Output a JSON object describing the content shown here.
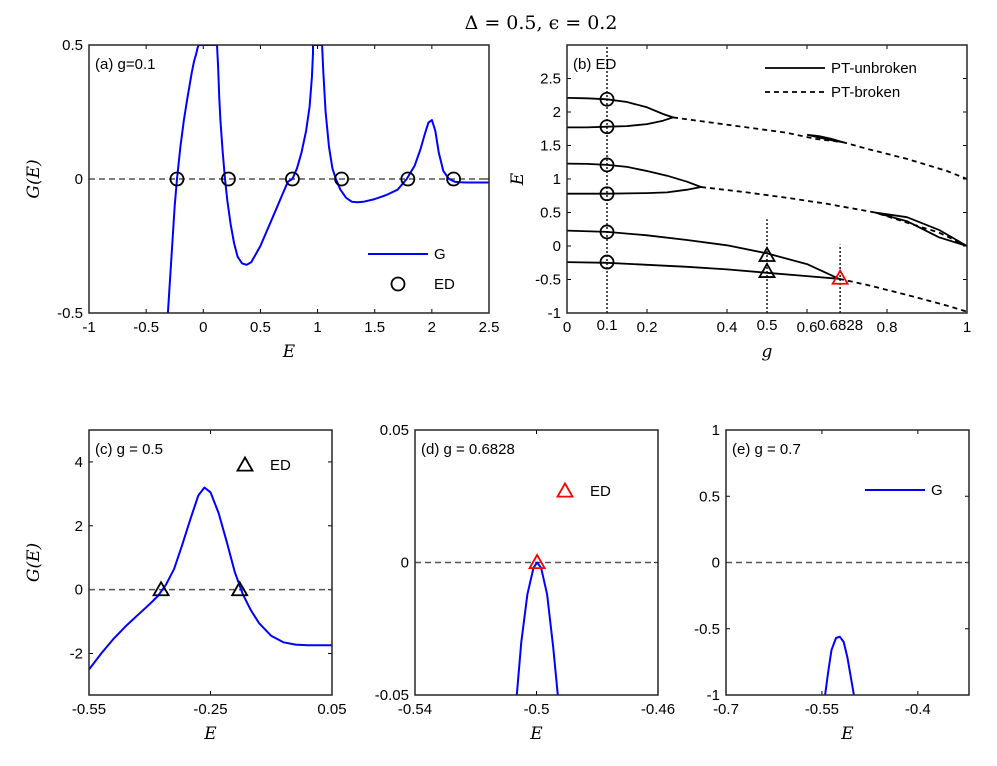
{
  "figure_title": "Δ = 0.5, ϵ = 0.2",
  "chart_data": [
    {
      "id": "a",
      "type": "line",
      "panel_label": "(a) g=0.1",
      "xlabel": "E",
      "ylabel": "G(E)",
      "xlim": [
        -1,
        2.5
      ],
      "ylim": [
        -0.5,
        0.5
      ],
      "xticks": [
        -1,
        -0.5,
        0,
        0.5,
        1,
        1.5,
        2,
        2.5
      ],
      "xtick_labels": [
        "-1",
        "-0.5",
        "0",
        "0.5",
        "1",
        "1.5",
        "2",
        "2.5"
      ],
      "yticks": [
        -0.5,
        0,
        0.5
      ],
      "ytick_labels": [
        "-0.5",
        "0",
        "0.5"
      ],
      "zero_line": true,
      "series": [
        {
          "name": "G",
          "kind": "line",
          "color": "#0000ff",
          "x": [
            -0.31,
            -0.28,
            -0.25,
            -0.23,
            -0.2,
            -0.17,
            -0.14,
            -0.12,
            -0.1,
            -0.08,
            -0.06,
            -0.05,
            -0.04,
            -0.03,
            -0.02,
            -0.02,
            0.12,
            0.12,
            0.13,
            0.14,
            0.15,
            0.17,
            0.19,
            0.21,
            0.24,
            0.27,
            0.3,
            0.34,
            0.38,
            0.42,
            0.46,
            0.5,
            0.55,
            0.6,
            0.65,
            0.7,
            0.74,
            0.78,
            0.82,
            0.86,
            0.9,
            0.93,
            0.95,
            0.96,
            0.96,
            1.04,
            1.05,
            1.07,
            1.1,
            1.13,
            1.16,
            1.2,
            1.25,
            1.3,
            1.35,
            1.4,
            1.5,
            1.6,
            1.7,
            1.78,
            1.85,
            1.9,
            1.94,
            1.97,
            2.0,
            2.03,
            2.06,
            2.1,
            2.15,
            2.2,
            2.25,
            2.3,
            2.35,
            2.4,
            2.5
          ],
          "y": [
            -0.5,
            -0.3,
            -0.1,
            0.0,
            0.12,
            0.22,
            0.3,
            0.35,
            0.4,
            0.44,
            0.47,
            0.49,
            0.5,
            0.5,
            0.5,
            0.5,
            0.5,
            0.5,
            0.42,
            0.3,
            0.22,
            0.1,
            0.0,
            -0.08,
            -0.17,
            -0.24,
            -0.29,
            -0.315,
            -0.32,
            -0.31,
            -0.28,
            -0.25,
            -0.2,
            -0.15,
            -0.1,
            -0.05,
            -0.01,
            0.0,
            0.04,
            0.1,
            0.18,
            0.27,
            0.38,
            0.47,
            0.5,
            0.5,
            0.4,
            0.25,
            0.12,
            0.04,
            0.0,
            -0.04,
            -0.07,
            -0.085,
            -0.087,
            -0.085,
            -0.075,
            -0.06,
            -0.04,
            0.0,
            0.05,
            0.11,
            0.17,
            0.21,
            0.22,
            0.18,
            0.1,
            0.03,
            0.0,
            -0.01,
            -0.012,
            -0.013,
            -0.013,
            -0.013,
            -0.013
          ]
        },
        {
          "name": "ED",
          "kind": "marker",
          "marker": "circle",
          "color": "#000000",
          "x": [
            -0.23,
            0.22,
            0.78,
            1.21,
            1.79,
            2.19
          ],
          "y": [
            0,
            0,
            0,
            0,
            0,
            0
          ]
        }
      ],
      "legend": {
        "position": "bottom-right",
        "entries": [
          "G",
          "ED"
        ]
      }
    },
    {
      "id": "b",
      "type": "line",
      "panel_label": "(b) ED",
      "xlabel": "g",
      "ylabel": "E",
      "xlim": [
        0,
        1
      ],
      "ylim": [
        -1,
        3
      ],
      "xticks": [
        0,
        0.2,
        0.4,
        0.6,
        0.8,
        1
      ],
      "xtick_labels": [
        "0",
        "0.2",
        "0.4",
        "0.6",
        "0.8",
        "1"
      ],
      "yticks": [
        -1,
        -0.5,
        0,
        0.5,
        1,
        1.5,
        2,
        2.5
      ],
      "ytick_labels": [
        "-1",
        "-0.5",
        "0",
        "0.5",
        "1",
        "1.5",
        "2",
        "2.5"
      ],
      "annotations": [
        {
          "text": "0.1",
          "x": 0.1,
          "y": -1.12
        },
        {
          "text": "0.5",
          "x": 0.5,
          "y": -1.12
        },
        {
          "text": "0.6828",
          "x": 0.6828,
          "y": -1.12
        }
      ],
      "vlines": [
        {
          "x": 0.1,
          "y_from": -1,
          "y_to": 3
        },
        {
          "x": 0.5,
          "y_from": -1,
          "y_to": 0.4
        },
        {
          "x": 0.6828,
          "y_from": -1,
          "y_to": 0.02
        }
      ],
      "series": [
        {
          "name": "PT-unbroken",
          "kind": "line",
          "dash": "solid",
          "x": [
            0,
            0.05,
            0.1,
            0.15,
            0.2,
            0.24,
            0.265,
            0.24,
            0.2,
            0.15,
            0.1,
            0.05,
            0
          ],
          "y": [
            2.21,
            2.205,
            2.19,
            2.15,
            2.07,
            1.97,
            1.92,
            1.87,
            1.82,
            1.79,
            1.78,
            1.77,
            1.77
          ]
        },
        {
          "name": "PT-unbroken",
          "kind": "line",
          "dash": "solid",
          "x": [
            0,
            0.05,
            0.1,
            0.15,
            0.2,
            0.25,
            0.3,
            0.335,
            0.3,
            0.25,
            0.2,
            0.15,
            0.1,
            0.05,
            0
          ],
          "y": [
            1.23,
            1.225,
            1.21,
            1.18,
            1.12,
            1.05,
            0.96,
            0.88,
            0.84,
            0.8,
            0.79,
            0.785,
            0.78,
            0.78,
            0.78
          ]
        },
        {
          "name": "PT-unbroken",
          "kind": "line",
          "dash": "solid",
          "x": [
            0,
            0.1,
            0.2,
            0.3,
            0.4,
            0.5,
            0.6,
            0.68,
            0.6,
            0.5,
            0.4,
            0.3,
            0.2,
            0.1,
            0
          ],
          "y": [
            0.23,
            0.21,
            0.16,
            0.09,
            0.01,
            -0.11,
            -0.27,
            -0.49,
            -0.45,
            -0.4,
            -0.35,
            -0.31,
            -0.28,
            -0.25,
            -0.24
          ]
        },
        {
          "name": "PT-unbroken",
          "kind": "line",
          "dash": "solid",
          "x": [
            0.6,
            0.63,
            0.66,
            0.69,
            0.66,
            0.63,
            0.6
          ],
          "y": [
            1.66,
            1.64,
            1.6,
            1.55,
            1.58,
            1.62,
            1.66
          ]
        },
        {
          "name": "PT-unbroken",
          "kind": "line",
          "dash": "solid",
          "x": [
            0.77,
            0.85,
            0.93,
            1.0,
            0.93,
            0.85,
            0.77
          ],
          "y": [
            0.5,
            0.43,
            0.24,
            0.0,
            0.13,
            0.37,
            0.5
          ]
        },
        {
          "name": "PT-broken",
          "kind": "line",
          "dash": "dashed",
          "x": [
            0.265,
            0.35,
            0.45,
            0.55,
            0.62,
            0.69,
            0.75,
            0.85,
            0.95,
            1.0
          ],
          "y": [
            1.92,
            1.85,
            1.77,
            1.69,
            1.6,
            1.55,
            1.45,
            1.3,
            1.12,
            1.0
          ]
        },
        {
          "name": "PT-broken",
          "kind": "line",
          "dash": "dashed",
          "x": [
            0.335,
            0.45,
            0.55,
            0.65,
            0.77,
            0.85,
            0.93,
            1.0
          ],
          "y": [
            0.88,
            0.8,
            0.72,
            0.63,
            0.5,
            0.35,
            0.2,
            0.0
          ]
        },
        {
          "name": "PT-broken",
          "kind": "line",
          "dash": "dashed",
          "x": [
            0.68,
            0.75,
            0.85,
            0.95,
            1.0
          ],
          "y": [
            -0.49,
            -0.58,
            -0.73,
            -0.89,
            -0.98
          ]
        },
        {
          "name": "ED-circles",
          "kind": "marker",
          "marker": "circle",
          "color": "#000000",
          "x": [
            0.1,
            0.1,
            0.1,
            0.1,
            0.1,
            0.1
          ],
          "y": [
            2.19,
            1.78,
            1.21,
            0.78,
            0.21,
            -0.24
          ]
        },
        {
          "name": "ED-triangles",
          "kind": "marker",
          "marker": "triangle",
          "color": "#000000",
          "x": [
            0.5,
            0.5
          ],
          "y": [
            -0.14,
            -0.38
          ]
        },
        {
          "name": "EP",
          "kind": "marker",
          "marker": "triangle",
          "color": "#ff0000",
          "x": [
            0.6828
          ],
          "y": [
            -0.48
          ]
        }
      ],
      "legend": {
        "position": "top-right",
        "entries": [
          "PT-unbroken",
          "PT-broken"
        ]
      }
    },
    {
      "id": "c",
      "type": "line",
      "panel_label": "(c) g = 0.5",
      "xlabel": "E",
      "ylabel": "G(E)",
      "xlim": [
        -0.55,
        0.05
      ],
      "ylim": [
        -3.3,
        5
      ],
      "xticks": [
        -0.55,
        -0.25,
        0.05
      ],
      "xtick_labels": [
        "-0.55",
        "-0.25",
        "0.05"
      ],
      "yticks": [
        -2,
        0,
        2,
        4
      ],
      "ytick_labels": [
        "-2",
        "0",
        "2",
        "4"
      ],
      "zero_line": true,
      "series": [
        {
          "name": "G",
          "kind": "line",
          "color": "#0000ff",
          "x": [
            -0.55,
            -0.52,
            -0.49,
            -0.46,
            -0.43,
            -0.4,
            -0.38,
            -0.36,
            -0.34,
            -0.32,
            -0.3,
            -0.28,
            -0.265,
            -0.25,
            -0.23,
            -0.21,
            -0.19,
            -0.17,
            -0.15,
            -0.13,
            -0.1,
            -0.07,
            -0.04,
            -0.01,
            0.02,
            0.05
          ],
          "y": [
            -2.5,
            -2.0,
            -1.55,
            -1.15,
            -0.8,
            -0.45,
            -0.2,
            0.15,
            0.65,
            1.4,
            2.2,
            2.95,
            3.2,
            3.05,
            2.4,
            1.5,
            0.55,
            -0.15,
            -0.65,
            -1.05,
            -1.45,
            -1.65,
            -1.72,
            -1.74,
            -1.74,
            -1.74
          ]
        },
        {
          "name": "ED",
          "kind": "marker",
          "marker": "triangle",
          "color": "#000000",
          "x": [
            -0.372,
            -0.178
          ],
          "y": [
            0,
            0
          ]
        }
      ],
      "legend": {
        "position": "top-right",
        "entries": [
          "ED"
        ]
      }
    },
    {
      "id": "d",
      "type": "line",
      "panel_label": "(d) g = 0.6828",
      "xlabel": "E",
      "ylabel": "",
      "xlim": [
        -0.54,
        -0.46
      ],
      "ylim": [
        -0.05,
        0.05
      ],
      "xticks": [
        -0.54,
        -0.5,
        -0.46
      ],
      "xtick_labels": [
        "-0.54",
        "-0.5",
        "-0.46"
      ],
      "yticks": [
        -0.05,
        0,
        0.05
      ],
      "ytick_labels": [
        "-0.05",
        "0",
        "0.05"
      ],
      "zero_line": true,
      "series": [
        {
          "name": "G",
          "kind": "line",
          "color": "#0000ff",
          "x": [
            -0.5065,
            -0.505,
            -0.503,
            -0.501,
            -0.4998,
            -0.4985,
            -0.4965,
            -0.4945,
            -0.493
          ],
          "y": [
            -0.05,
            -0.03,
            -0.012,
            -0.002,
            0.0,
            -0.002,
            -0.012,
            -0.032,
            -0.05
          ]
        },
        {
          "name": "ED",
          "kind": "marker",
          "marker": "triangle",
          "color": "#ff0000",
          "x": [
            -0.4998
          ],
          "y": [
            0
          ]
        }
      ],
      "legend": {
        "position": "top-right",
        "entries": [
          "ED"
        ]
      }
    },
    {
      "id": "e",
      "type": "line",
      "panel_label": "(e) g = 0.7",
      "xlabel": "E",
      "ylabel": "",
      "xlim": [
        -0.7,
        -0.32
      ],
      "ylim": [
        -1,
        1
      ],
      "xticks": [
        -0.7,
        -0.55,
        -0.4
      ],
      "xtick_labels": [
        "-0.7",
        "-0.55",
        "-0.4"
      ],
      "yticks": [
        -1,
        -0.5,
        0,
        0.5,
        1
      ],
      "ytick_labels": [
        "-1",
        "-0.5",
        "0",
        "0.5",
        "1"
      ],
      "zero_line": true,
      "series": [
        {
          "name": "G",
          "kind": "line",
          "color": "#0000ff",
          "x": [
            -0.545,
            -0.54,
            -0.535,
            -0.528,
            -0.522,
            -0.516,
            -0.51,
            -0.505,
            -0.5
          ],
          "y": [
            -1.0,
            -0.82,
            -0.66,
            -0.57,
            -0.56,
            -0.6,
            -0.72,
            -0.86,
            -1.0
          ]
        }
      ],
      "legend": {
        "position": "top-right",
        "entries": [
          "G"
        ]
      }
    }
  ]
}
